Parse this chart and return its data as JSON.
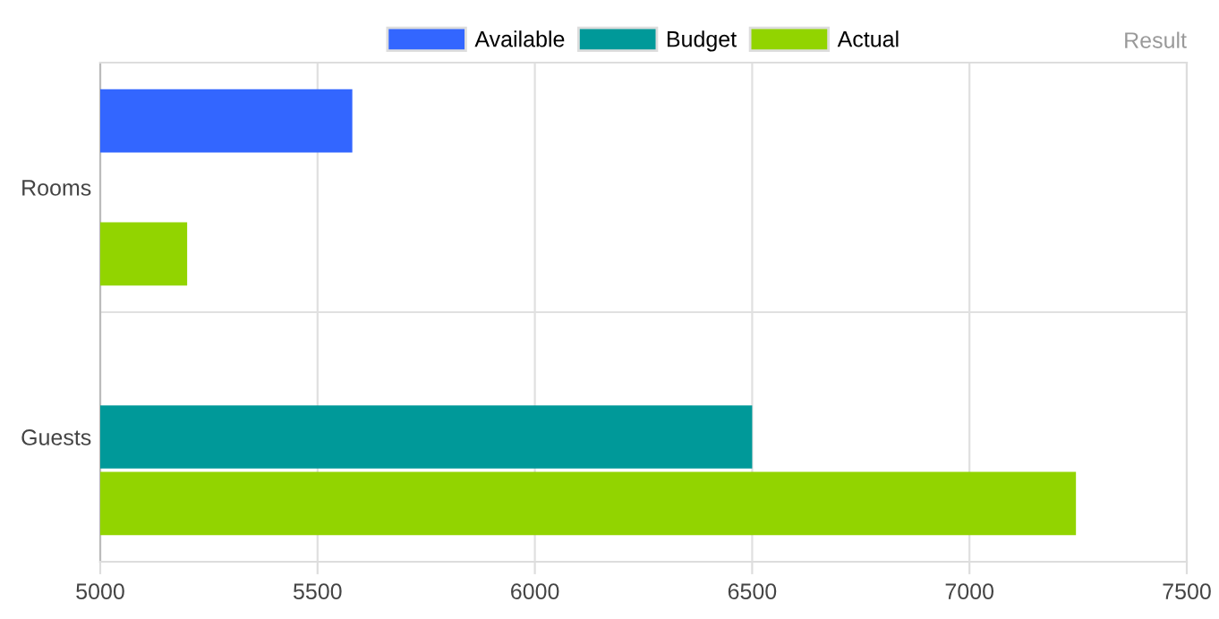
{
  "chart_data": {
    "type": "bar",
    "orientation": "horizontal",
    "categories": [
      "Rooms",
      "Guests"
    ],
    "series": [
      {
        "name": "Available",
        "color": "#3366ff",
        "values": [
          5580,
          null
        ]
      },
      {
        "name": "Budget",
        "color": "#009999",
        "values": [
          null,
          6500
        ]
      },
      {
        "name": "Actual",
        "color": "#92d400",
        "values": [
          5200,
          7245
        ]
      }
    ],
    "xlim": [
      5000,
      7500
    ],
    "xticks": [
      5000,
      5500,
      6000,
      6500,
      7000,
      7500
    ],
    "grid": true,
    "legend": "top",
    "annotations": [
      "Result"
    ]
  }
}
